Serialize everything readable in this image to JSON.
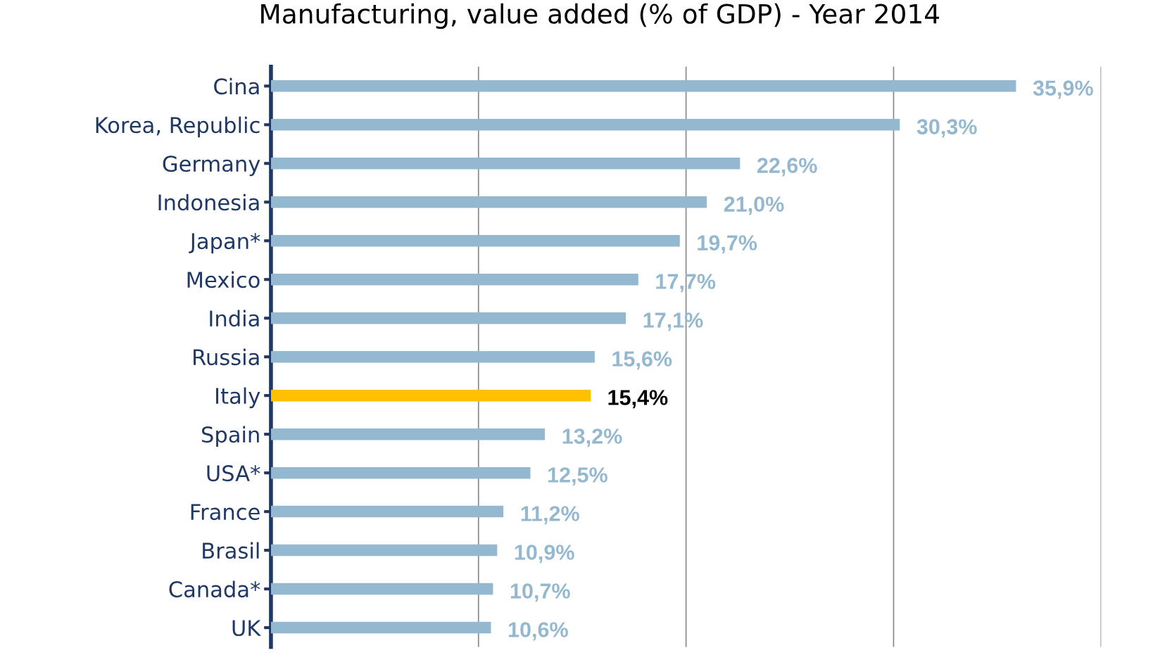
{
  "chart_data": {
    "type": "bar",
    "orientation": "horizontal",
    "title": "Manufacturing, value added (% of GDP) - Year 2014",
    "categories": [
      "Cina",
      "Korea, Republic",
      "Germany",
      "Indonesia",
      "Japan*",
      "Mexico",
      "India",
      "Russia",
      "Italy",
      "Spain",
      "USA*",
      "France",
      "Brasil",
      "Canada*",
      "UK"
    ],
    "values": [
      35.9,
      30.3,
      22.6,
      21.0,
      19.7,
      17.7,
      17.1,
      15.6,
      15.4,
      13.2,
      12.5,
      11.2,
      10.9,
      10.7,
      10.6
    ],
    "value_labels": [
      "35,9%",
      "30,3%",
      "22,6%",
      "21,0%",
      "19,7%",
      "17,7%",
      "17,1%",
      "15,6%",
      "15,4%",
      "13,2%",
      "12,5%",
      "11,2%",
      "10,9%",
      "10,7%",
      "10,6%"
    ],
    "colors": [
      "#93b8cf",
      "#93b8cf",
      "#93b8cf",
      "#93b8cf",
      "#93b8cf",
      "#93b8cf",
      "#93b8cf",
      "#93b8cf",
      "#ffc000",
      "#93b8cf",
      "#93b8cf",
      "#93b8cf",
      "#93b8cf",
      "#93b8cf",
      "#93b8cf"
    ],
    "xlim": [
      0,
      40
    ],
    "xticks": [
      {
        "value": 0,
        "label": null
      },
      {
        "value": 10,
        "label": null
      },
      {
        "value": 20,
        "label": null
      },
      {
        "value": 30,
        "label": null
      },
      {
        "value": 40,
        "label": null
      }
    ],
    "grid": "x",
    "tick_labels": "y"
  }
}
